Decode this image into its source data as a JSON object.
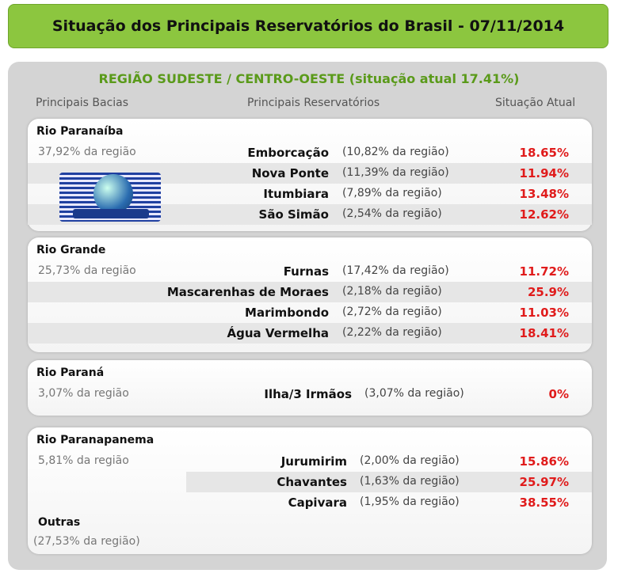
{
  "header": {
    "title": "Situação dos Principais Reservatórios do Brasil - 07/11/2014"
  },
  "region": {
    "title": "REGIÃO SUDESTE / CENTRO-OESTE (situação atual 17.41%)",
    "columns": [
      "Principais Bacias",
      "Principais Reservatórios",
      "Situação Atual"
    ]
  },
  "basins": [
    {
      "name": "Rio Paranaíba",
      "share": "37,92% da região",
      "reservoirs": [
        {
          "name": "Emborcação",
          "share": "(10,82% da região)",
          "status": "18.65%"
        },
        {
          "name": "Nova Ponte",
          "share": "(11,39% da região)",
          "status": "11.94%"
        },
        {
          "name": "Itumbiara",
          "share": "(7,89% da região)",
          "status": "13.48%"
        },
        {
          "name": "São Simão",
          "share": "(2,54% da região)",
          "status": "12.62%"
        }
      ]
    },
    {
      "name": "Rio Grande",
      "share": "25,73% da região",
      "reservoirs": [
        {
          "name": "Furnas",
          "share": "(17,42% da região)",
          "status": "11.72%"
        },
        {
          "name": "Mascarenhas de Moraes",
          "share": "(2,18% da região)",
          "status": "25.9%"
        },
        {
          "name": "Marimbondo",
          "share": "(2,72% da região)",
          "status": "11.03%"
        },
        {
          "name": "Água Vermelha",
          "share": "(2,22% da região)",
          "status": "18.41%"
        }
      ]
    },
    {
      "name": "Rio Paraná",
      "share": "3,07% da região",
      "reservoirs": [
        {
          "name": "Ilha/3 Irmãos",
          "share": "(3,07% da região)",
          "status": "0%"
        }
      ]
    },
    {
      "name": "Rio Paranapanema",
      "share": "5,81% da região",
      "reservoirs": [
        {
          "name": "Jurumirim",
          "share": "(2,00% da região)",
          "status": "15.86%"
        },
        {
          "name": "Chavantes",
          "share": "(1,63% da região)",
          "status": "25.97%"
        },
        {
          "name": "Capivara",
          "share": "(1,95% da região)",
          "status": "38.55%"
        }
      ]
    }
  ],
  "other": {
    "name": "Outras",
    "share": "(27,53% da região)"
  }
}
